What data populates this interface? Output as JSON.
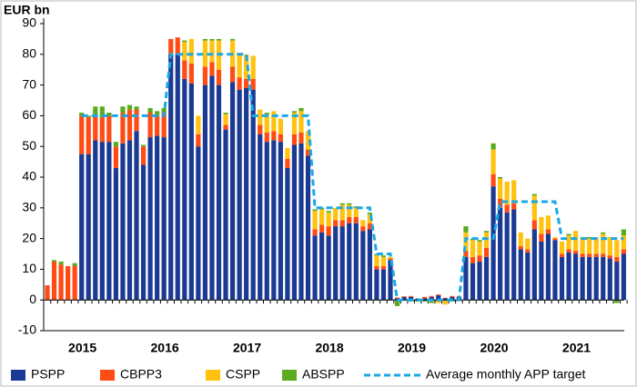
{
  "chart_data": {
    "type": "bar",
    "stacked": true,
    "y_label": "EUR bn",
    "categories": [
      null,
      null,
      null,
      "2015",
      null,
      null,
      null,
      null,
      null,
      null,
      null,
      null,
      null,
      null,
      null,
      "2016",
      null,
      null,
      null,
      null,
      null,
      null,
      null,
      null,
      null,
      null,
      null,
      "2017",
      null,
      null,
      null,
      null,
      null,
      null,
      null,
      null,
      null,
      null,
      null,
      "2018",
      null,
      null,
      null,
      null,
      null,
      null,
      null,
      null,
      null,
      null,
      null,
      "2019",
      null,
      null,
      null,
      null,
      null,
      null,
      null,
      null,
      null,
      null,
      null,
      "2020",
      null,
      null,
      null,
      null,
      null,
      null,
      null,
      null,
      null,
      null,
      null,
      "2021",
      null,
      null,
      null,
      null,
      null,
      null,
      null,
      null,
      null
    ],
    "series": [
      {
        "name": "PSPP",
        "color": "#1b3a94",
        "values": [
          0,
          0,
          0,
          0,
          0,
          47.5,
          47.5,
          52,
          51.5,
          51.5,
          43,
          51,
          52,
          55,
          44,
          53,
          53.5,
          53,
          80,
          80,
          72,
          70.5,
          50,
          70,
          73,
          70,
          55.5,
          71,
          68.5,
          69,
          68.5,
          54,
          51.5,
          52,
          51.5,
          43,
          50.5,
          51,
          47,
          21,
          22,
          21,
          24,
          24,
          25,
          25,
          22.5,
          23,
          10,
          10,
          13,
          0.5,
          1,
          1,
          0.5,
          0.5,
          1,
          1.5,
          0.5,
          1,
          1,
          14,
          12,
          12.5,
          14,
          37,
          30,
          28.5,
          29.5,
          16.5,
          15.5,
          23,
          19,
          21.5,
          19.5,
          14,
          15.5,
          15,
          14,
          14,
          14,
          14,
          13.5,
          12.5,
          15
        ]
      },
      {
        "name": "CBPP3",
        "color": "#ff4b14",
        "values": [
          4.8,
          12.5,
          11.5,
          11,
          11,
          12.5,
          12,
          8,
          8,
          8.5,
          7,
          10,
          10,
          7,
          6,
          8,
          6.5,
          8,
          5,
          5.5,
          6,
          6.5,
          4,
          6,
          4.5,
          5,
          1.5,
          5,
          4,
          3,
          3.5,
          3,
          3,
          3,
          2.5,
          3,
          3.5,
          3.5,
          2,
          2,
          2.5,
          3,
          2,
          2,
          2,
          2,
          1.5,
          2,
          1,
          1,
          0.5,
          0.3,
          0.2,
          0.3,
          0,
          0.5,
          0.3,
          0.3,
          0.2,
          0.3,
          0.3,
          2,
          2,
          2,
          3,
          4,
          3,
          2.5,
          2,
          1,
          1,
          3,
          2.5,
          1.5,
          0.5,
          1,
          1,
          1,
          1,
          1,
          1,
          1,
          1,
          1.5,
          1.5
        ]
      },
      {
        "name": "CSPP",
        "color": "#ffc20e",
        "values": [
          0,
          0,
          0,
          0,
          0,
          0,
          0,
          0,
          0,
          0,
          0,
          0,
          0,
          0,
          0,
          0,
          0,
          0,
          0,
          0,
          6,
          8,
          6,
          8.5,
          7,
          9.5,
          3.5,
          8.5,
          8,
          8,
          7.5,
          5,
          6,
          6.5,
          5,
          3.5,
          7,
          7,
          6,
          6,
          5,
          4.5,
          4,
          5,
          4,
          3,
          2,
          3,
          3.5,
          3,
          0.5,
          0,
          0,
          0,
          0,
          0,
          -0.5,
          -1,
          -1.5,
          0,
          0,
          6,
          5.5,
          4.5,
          5,
          8,
          6.5,
          7.5,
          7.5,
          4.5,
          3.5,
          8,
          5.5,
          4.5,
          0.5,
          4,
          4.5,
          6.5,
          5.5,
          5,
          5.5,
          6.5,
          6,
          5.5,
          4.5
        ]
      },
      {
        "name": "ABSPP",
        "color": "#5aab1f",
        "values": [
          0,
          0.5,
          1,
          0,
          1,
          1,
          0.5,
          3,
          3.5,
          1,
          1.5,
          2,
          1.5,
          1,
          0.5,
          1.5,
          1.5,
          1.5,
          0,
          0,
          0.5,
          0,
          0,
          0.5,
          0.5,
          0.5,
          0.5,
          0.5,
          0,
          0,
          0,
          0,
          0.5,
          0,
          0,
          0,
          0.5,
          1,
          0,
          0.5,
          0.5,
          0.5,
          0,
          0.5,
          0.5,
          0.5,
          0,
          0.5,
          0.5,
          0.5,
          0,
          -2,
          0,
          -0.5,
          -0.5,
          -0.5,
          -0.5,
          0,
          0,
          -0.5,
          0,
          2,
          0.5,
          0.5,
          0.5,
          2,
          0.5,
          0,
          0,
          0,
          0,
          0.5,
          0,
          0,
          0,
          0,
          0.5,
          0,
          0,
          0.5,
          0,
          0.5,
          0,
          -1,
          2
        ]
      },
      {
        "name": "Average monthly APP target",
        "color": "#1aa8e6",
        "type": "line",
        "dashed": true,
        "values": [
          null,
          null,
          null,
          null,
          null,
          60,
          60,
          60,
          60,
          60,
          60,
          60,
          60,
          60,
          60,
          60,
          60,
          60,
          80,
          80,
          80,
          80,
          80,
          80,
          80,
          80,
          80,
          80,
          80,
          80,
          60,
          60,
          60,
          60,
          60,
          60,
          60,
          60,
          60,
          30,
          30,
          30,
          30,
          30,
          30,
          30,
          30,
          30,
          15,
          15,
          15,
          0,
          0,
          0,
          0,
          0,
          0,
          0,
          0,
          0,
          0,
          20,
          20,
          20,
          20,
          20,
          32,
          32,
          32,
          32,
          32,
          32,
          32,
          32,
          32,
          20,
          20,
          20,
          20,
          20,
          20,
          20,
          20,
          20,
          20
        ]
      }
    ],
    "ylim": [
      -10,
      90
    ],
    "yticks": [
      -10,
      0,
      10,
      20,
      30,
      40,
      50,
      60,
      70,
      80,
      90
    ],
    "grid": false,
    "legend": "bottom"
  }
}
